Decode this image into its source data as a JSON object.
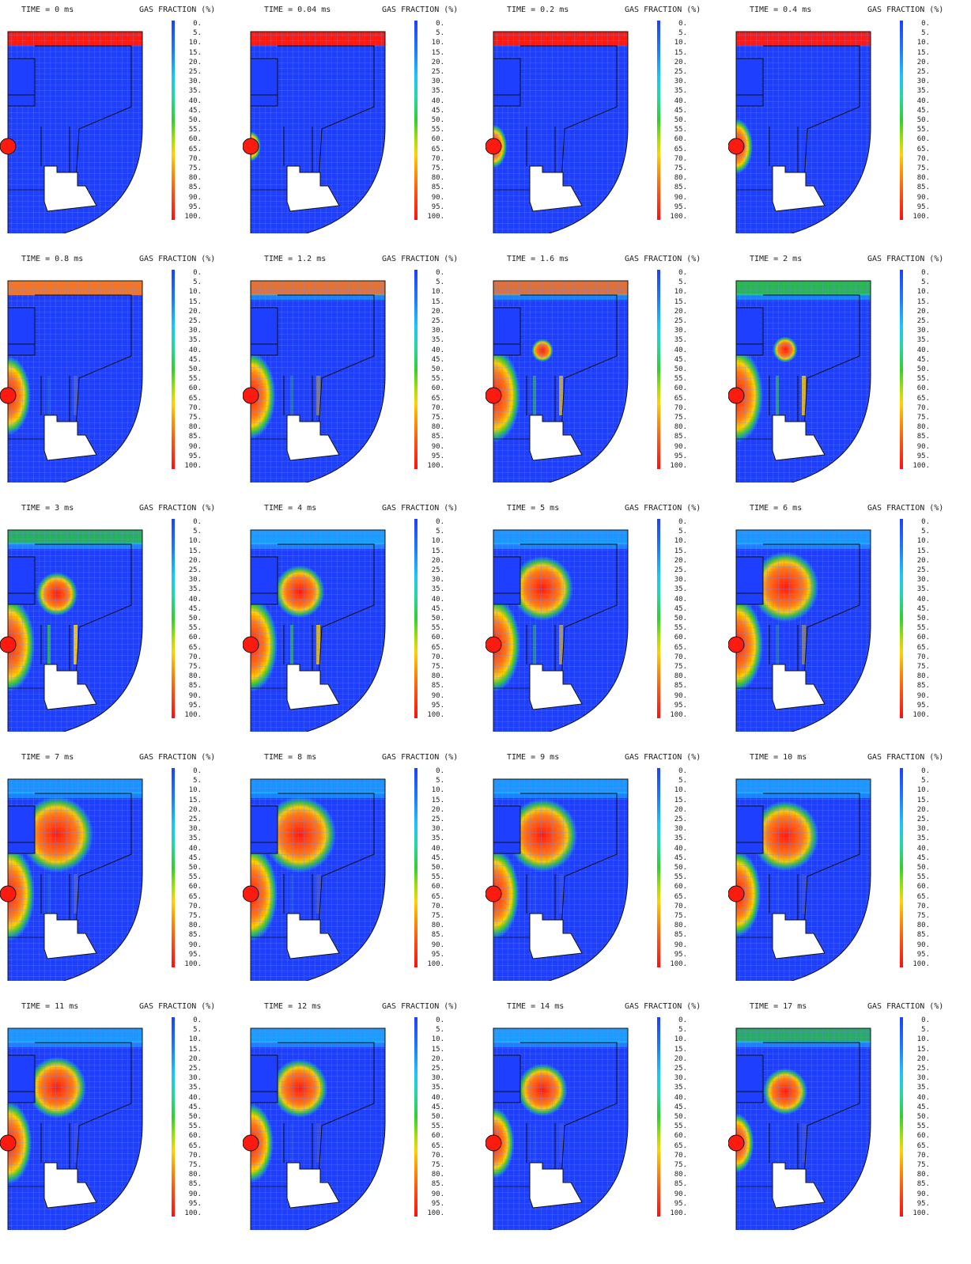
{
  "colors": {
    "liquid": "#1f3fff",
    "gas": "#ff1a10",
    "orange": "#ff7a1a",
    "yellow": "#ffd000",
    "green": "#2ed12e",
    "cyan": "#19c4ff",
    "outline": "#111111",
    "mesh": "#6f8dff"
  },
  "chart_data": {
    "type": "heatmap",
    "colorbar_title": "GAS FRACTION (%)",
    "colorbar_ticks": [
      "0.",
      "5.",
      "10.",
      "15.",
      "20.",
      "25.",
      "30.",
      "35.",
      "40.",
      "45.",
      "50.",
      "55.",
      "60.",
      "65.",
      "70.",
      "75.",
      "80.",
      "85.",
      "90.",
      "95.",
      "100."
    ],
    "layout": {
      "rows": 5,
      "columns": 4
    },
    "panels": [
      {
        "time_label": "TIME = 0 ms",
        "time_ms": 0,
        "bubble": 0,
        "plume": 0,
        "top_gas": 1.0,
        "slits": 0
      },
      {
        "time_label": "TIME = 0.04 ms",
        "time_ms": 0.04,
        "bubble": 0.18,
        "plume": 0,
        "top_gas": 1.0,
        "slits": 0
      },
      {
        "time_label": "TIME = 0.2 ms",
        "time_ms": 0.2,
        "bubble": 0.35,
        "plume": 0,
        "top_gas": 1.0,
        "slits": 0
      },
      {
        "time_label": "TIME = 0.4 ms",
        "time_ms": 0.4,
        "bubble": 0.5,
        "plume": 0,
        "top_gas": 0.95,
        "slits": 0
      },
      {
        "time_label": "TIME = 0.8 ms",
        "time_ms": 0.8,
        "bubble": 0.8,
        "plume": 0,
        "top_gas": 0.9,
        "slits": 0.2
      },
      {
        "time_label": "TIME = 1.2 ms",
        "time_ms": 1.2,
        "bubble": 0.9,
        "plume": 0,
        "top_gas": 0.8,
        "slits": 0.4
      },
      {
        "time_label": "TIME = 1.6 ms",
        "time_ms": 1.6,
        "bubble": 1.0,
        "plume": 0.1,
        "top_gas": 0.75,
        "slits": 0.7
      },
      {
        "time_label": "TIME = 2 ms",
        "time_ms": 2,
        "bubble": 1.0,
        "plume": 0.15,
        "top_gas": 0.7,
        "slits": 0.8
      },
      {
        "time_label": "TIME = 3 ms",
        "time_ms": 3,
        "bubble": 1.0,
        "plume": 0.45,
        "top_gas": 0.6,
        "slits": 0.9
      },
      {
        "time_label": "TIME = 4 ms",
        "time_ms": 4,
        "bubble": 1.0,
        "plume": 0.6,
        "top_gas": 0.5,
        "slits": 0.8
      },
      {
        "time_label": "TIME = 5 ms",
        "time_ms": 5,
        "bubble": 1.0,
        "plume": 0.8,
        "top_gas": 0.45,
        "slits": 0.6
      },
      {
        "time_label": "TIME = 6 ms",
        "time_ms": 6,
        "bubble": 1.0,
        "plume": 0.9,
        "top_gas": 0.45,
        "slits": 0.4
      },
      {
        "time_label": "TIME = 7 ms",
        "time_ms": 7,
        "bubble": 1.0,
        "plume": 1.0,
        "top_gas": 0.4,
        "slits": 0.2
      },
      {
        "time_label": "TIME = 8 ms",
        "time_ms": 8,
        "bubble": 1.0,
        "plume": 1.0,
        "top_gas": 0.4,
        "slits": 0.15
      },
      {
        "time_label": "TIME = 9 ms",
        "time_ms": 9,
        "bubble": 0.95,
        "plume": 0.95,
        "top_gas": 0.45,
        "slits": 0.1
      },
      {
        "time_label": "TIME = 10 ms",
        "time_ms": 10,
        "bubble": 0.9,
        "plume": 0.9,
        "top_gas": 0.45,
        "slits": 0.1
      },
      {
        "time_label": "TIME = 11 ms",
        "time_ms": 11,
        "bubble": 0.85,
        "plume": 0.75,
        "top_gas": 0.45,
        "slits": 0.1
      },
      {
        "time_label": "TIME = 12 ms",
        "time_ms": 12,
        "bubble": 0.8,
        "plume": 0.7,
        "top_gas": 0.5,
        "slits": 0.1
      },
      {
        "time_label": "TIME = 14 ms",
        "time_ms": 14,
        "bubble": 0.7,
        "plume": 0.6,
        "top_gas": 0.5,
        "slits": 0.1
      },
      {
        "time_label": "TIME = 17 ms",
        "time_ms": 17,
        "bubble": 0.55,
        "plume": 0.5,
        "top_gas": 0.55,
        "slits": 0.1
      }
    ]
  }
}
